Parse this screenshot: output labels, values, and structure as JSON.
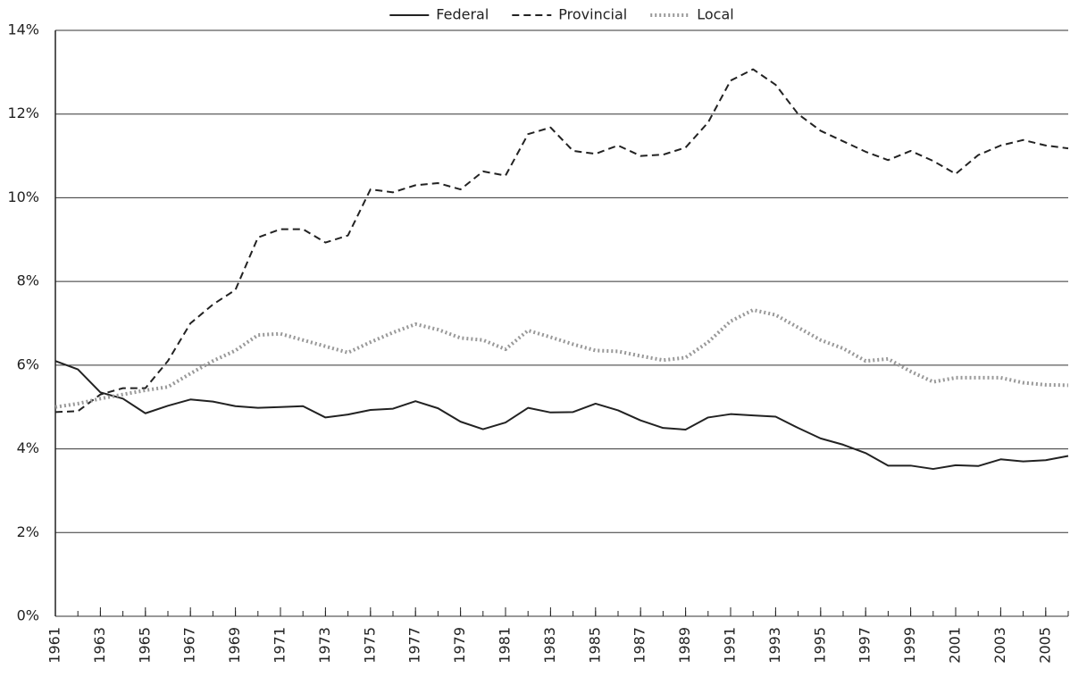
{
  "chart_data": {
    "type": "line",
    "x": [
      1961,
      1962,
      1963,
      1964,
      1965,
      1966,
      1967,
      1968,
      1969,
      1970,
      1971,
      1972,
      1973,
      1974,
      1975,
      1976,
      1977,
      1978,
      1979,
      1980,
      1981,
      1982,
      1983,
      1984,
      1985,
      1986,
      1987,
      1988,
      1989,
      1990,
      1991,
      1992,
      1993,
      1994,
      1995,
      1996,
      1997,
      1998,
      1999,
      2000,
      2001,
      2002,
      2003,
      2004,
      2005,
      2006
    ],
    "xlim": [
      1961,
      2006
    ],
    "xticks": [
      1961,
      1963,
      1965,
      1967,
      1969,
      1971,
      1973,
      1975,
      1977,
      1979,
      1981,
      1983,
      1985,
      1987,
      1989,
      1991,
      1993,
      1995,
      1997,
      1999,
      2001,
      2003,
      2005
    ],
    "ylim": [
      0,
      14
    ],
    "yticks": [
      {
        "value": 0,
        "label": "0%"
      },
      {
        "value": 2,
        "label": "2%"
      },
      {
        "value": 4,
        "label": "4%"
      },
      {
        "value": 6,
        "label": "6%"
      },
      {
        "value": 8,
        "label": "8%"
      },
      {
        "value": 10,
        "label": "10%"
      },
      {
        "value": 12,
        "label": "12%"
      },
      {
        "value": 14,
        "label": "14%"
      }
    ],
    "grid": true,
    "legend": "top",
    "series": [
      {
        "name": "Federal",
        "color": "#222222",
        "dash": "solid",
        "values": [
          6.1,
          5.9,
          5.35,
          5.2,
          4.85,
          5.03,
          5.18,
          5.13,
          5.02,
          4.98,
          5.0,
          5.02,
          4.75,
          4.82,
          4.93,
          4.96,
          5.14,
          4.97,
          4.65,
          4.47,
          4.63,
          4.98,
          4.87,
          4.88,
          5.08,
          4.92,
          4.68,
          4.5,
          4.46,
          4.75,
          4.83,
          4.8,
          4.77,
          4.5,
          4.25,
          4.1,
          3.9,
          3.6,
          3.6,
          3.52,
          3.61,
          3.59,
          3.75,
          3.7,
          3.73,
          3.83
        ]
      },
      {
        "name": "Provincial",
        "color": "#222222",
        "dash": "dashed",
        "values": [
          4.88,
          4.9,
          5.3,
          5.45,
          5.45,
          6.1,
          7.0,
          7.45,
          7.8,
          9.05,
          9.25,
          9.25,
          8.93,
          9.1,
          10.2,
          10.13,
          10.3,
          10.35,
          10.2,
          10.63,
          10.53,
          11.52,
          11.68,
          11.12,
          11.05,
          11.25,
          11.0,
          11.03,
          11.2,
          11.8,
          12.8,
          13.07,
          12.7,
          12.0,
          11.6,
          11.35,
          11.1,
          10.9,
          11.12,
          10.88,
          10.57,
          11.02,
          11.25,
          11.38,
          11.25,
          11.18
        ]
      },
      {
        "name": "Local",
        "color": "#999999",
        "dash": "dotted",
        "values": [
          5.0,
          5.08,
          5.2,
          5.3,
          5.4,
          5.48,
          5.8,
          6.1,
          6.35,
          6.72,
          6.75,
          6.6,
          6.45,
          6.3,
          6.55,
          6.78,
          6.98,
          6.85,
          6.65,
          6.6,
          6.38,
          6.83,
          6.67,
          6.5,
          6.35,
          6.33,
          6.22,
          6.12,
          6.18,
          6.55,
          7.05,
          7.32,
          7.2,
          6.9,
          6.6,
          6.4,
          6.1,
          6.15,
          5.85,
          5.6,
          5.7,
          5.7,
          5.7,
          5.58,
          5.53,
          5.52
        ]
      }
    ]
  }
}
